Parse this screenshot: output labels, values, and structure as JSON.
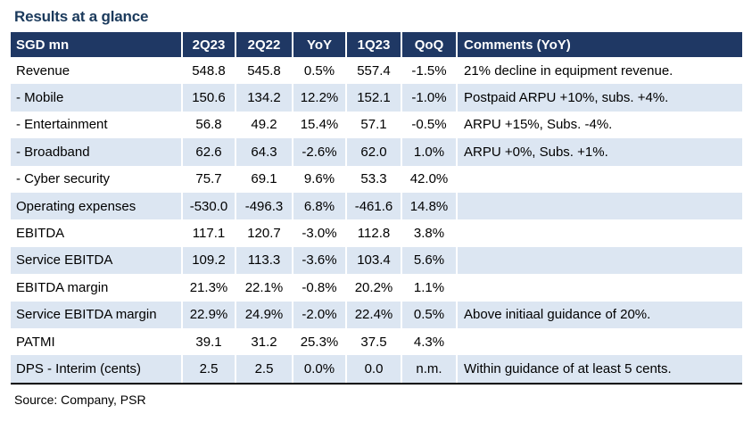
{
  "title": "Results at a glance",
  "table": {
    "headers": [
      "SGD mn",
      "2Q23",
      "2Q22",
      "YoY",
      "1Q23",
      "QoQ",
      "Comments (YoY)"
    ],
    "rows": [
      [
        "Revenue",
        "548.8",
        "545.8",
        "0.5%",
        "557.4",
        "-1.5%",
        "21% decline in equipment revenue."
      ],
      [
        " - Mobile",
        "150.6",
        "134.2",
        "12.2%",
        "152.1",
        "-1.0%",
        "Postpaid ARPU +10%, subs. +4%."
      ],
      [
        " - Entertainment",
        "56.8",
        "49.2",
        "15.4%",
        "57.1",
        "-0.5%",
        "ARPU +15%, Subs. -4%."
      ],
      [
        " - Broadband",
        "62.6",
        "64.3",
        "-2.6%",
        "62.0",
        "1.0%",
        "ARPU +0%, Subs. +1%."
      ],
      [
        " - Cyber security",
        "75.7",
        "69.1",
        "9.6%",
        "53.3",
        "42.0%",
        ""
      ],
      [
        "Operating expenses",
        "-530.0",
        "-496.3",
        "6.8%",
        "-461.6",
        "14.8%",
        ""
      ],
      [
        "EBITDA",
        "117.1",
        "120.7",
        "-3.0%",
        "112.8",
        "3.8%",
        ""
      ],
      [
        "Service EBITDA",
        "109.2",
        "113.3",
        "-3.6%",
        "103.4",
        "5.6%",
        ""
      ],
      [
        "EBITDA margin",
        "21.3%",
        "22.1%",
        "-0.8%",
        "20.2%",
        "1.1%",
        ""
      ],
      [
        "Service EBITDA margin",
        "22.9%",
        "24.9%",
        "-2.0%",
        "22.4%",
        "0.5%",
        "Above initiaal guidance of 20%."
      ],
      [
        "PATMI",
        "39.1",
        "31.2",
        "25.3%",
        "37.5",
        "4.3%",
        ""
      ],
      [
        "DPS - Interim (cents)",
        "2.5",
        "2.5",
        "0.0%",
        "0.0",
        "n.m.",
        "Within guidance of at least 5 cents."
      ]
    ]
  },
  "source": "Source: Company, PSR"
}
